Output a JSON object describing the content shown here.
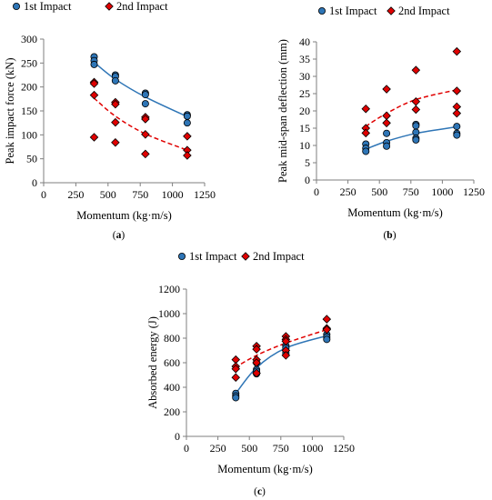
{
  "colors": {
    "series1": "#2E75B6",
    "series2": "#E00000",
    "marker_edge": "#000000",
    "axis": "#7f7f7f"
  },
  "chart_data": [
    {
      "panel_label": "a",
      "type": "scatter",
      "xlabel": "Momentum (kg·m/s)",
      "ylabel": "Peak impact force (kN)",
      "xlim": [
        0,
        1250
      ],
      "ylim": [
        0,
        300
      ],
      "x_ticks": [
        0,
        250,
        500,
        750,
        1000,
        1250
      ],
      "y_ticks": [
        0,
        50,
        100,
        150,
        200,
        250,
        300
      ],
      "legend_position": "top",
      "series": [
        {
          "name": "1st Impact",
          "marker": "circle",
          "points": [
            [
              392,
              263
            ],
            [
              392,
              255
            ],
            [
              392,
              247
            ],
            [
              557,
              225
            ],
            [
              557,
              222
            ],
            [
              557,
              213
            ],
            [
              790,
              187
            ],
            [
              790,
              184
            ],
            [
              790,
              165
            ],
            [
              1115,
              142
            ],
            [
              1115,
              139
            ],
            [
              1115,
              125
            ]
          ],
          "trend": {
            "style": "solid",
            "points": [
              [
                390,
                252
              ],
              [
                557,
                216
              ],
              [
                790,
                179
              ],
              [
                1115,
                138
              ]
            ]
          }
        },
        {
          "name": "2nd Impact",
          "marker": "diamond",
          "points": [
            [
              392,
              210
            ],
            [
              392,
              207
            ],
            [
              392,
              183
            ],
            [
              392,
              95
            ],
            [
              557,
              168
            ],
            [
              557,
              164
            ],
            [
              557,
              126
            ],
            [
              557,
              84
            ],
            [
              790,
              137
            ],
            [
              790,
              133
            ],
            [
              790,
              101
            ],
            [
              790,
              60
            ],
            [
              1115,
              97
            ],
            [
              1115,
              68
            ],
            [
              1115,
              57
            ]
          ],
          "trend": {
            "style": "dashed",
            "points": [
              [
                390,
                177
              ],
              [
                557,
                139
              ],
              [
                790,
                102
              ],
              [
                1115,
                68
              ]
            ]
          }
        }
      ]
    },
    {
      "panel_label": "b",
      "type": "scatter",
      "xlabel": "Momentum (kg·m/s)",
      "ylabel": "Peak mid-span deflection (mm)",
      "xlim": [
        0,
        1250
      ],
      "ylim": [
        0,
        40
      ],
      "x_ticks": [
        0,
        250,
        500,
        750,
        1000,
        1250
      ],
      "y_ticks": [
        0,
        5,
        10,
        15,
        20,
        25,
        30,
        35,
        40
      ],
      "legend_position": "top",
      "series": [
        {
          "name": "1st Impact",
          "marker": "circle",
          "points": [
            [
              392,
              10.4
            ],
            [
              392,
              9.2
            ],
            [
              392,
              8.3
            ],
            [
              557,
              13.5
            ],
            [
              557,
              10.8
            ],
            [
              557,
              9.8
            ],
            [
              790,
              16.1
            ],
            [
              790,
              15.7
            ],
            [
              790,
              13.8
            ],
            [
              790,
              12.1
            ],
            [
              790,
              11.6
            ],
            [
              1115,
              15.5
            ],
            [
              1115,
              13.5
            ],
            [
              1115,
              13.0
            ]
          ],
          "trend": {
            "style": "solid",
            "points": [
              [
                390,
                8.9
              ],
              [
                557,
                11.2
              ],
              [
                790,
                13.5
              ],
              [
                1115,
                15.4
              ]
            ]
          }
        },
        {
          "name": "2nd Impact",
          "marker": "diamond",
          "points": [
            [
              392,
              20.6
            ],
            [
              392,
              15.0
            ],
            [
              392,
              13.6
            ],
            [
              557,
              26.3
            ],
            [
              557,
              18.6
            ],
            [
              557,
              16.5
            ],
            [
              790,
              31.8
            ],
            [
              790,
              22.7
            ],
            [
              790,
              20.4
            ],
            [
              1115,
              37.2
            ],
            [
              1115,
              25.8
            ],
            [
              1115,
              21.2
            ],
            [
              1115,
              19.3
            ]
          ],
          "trend": {
            "style": "dashed",
            "points": [
              [
                390,
                15.5
              ],
              [
                557,
                19.3
              ],
              [
                790,
                23.3
              ],
              [
                1115,
                26.1
              ]
            ]
          }
        }
      ]
    },
    {
      "panel_label": "c",
      "type": "scatter",
      "xlabel": "Momentum (kg·m/s)",
      "ylabel": "Absorbed energy (J)",
      "xlim": [
        0,
        1250
      ],
      "ylim": [
        0,
        1200
      ],
      "x_ticks": [
        0,
        250,
        500,
        750,
        1000,
        1250
      ],
      "y_ticks": [
        0,
        200,
        400,
        600,
        800,
        1000,
        1200
      ],
      "legend_position": "top",
      "series": [
        {
          "name": "1st Impact",
          "marker": "circle",
          "points": [
            [
              392,
              350
            ],
            [
              392,
              330
            ],
            [
              392,
              315
            ],
            [
              557,
              600
            ],
            [
              557,
              545
            ],
            [
              557,
              530
            ],
            [
              557,
              510
            ],
            [
              790,
              740
            ],
            [
              790,
              720
            ],
            [
              790,
              680
            ],
            [
              1115,
              830
            ],
            [
              1115,
              810
            ],
            [
              1115,
              790
            ]
          ],
          "trend": {
            "style": "solid",
            "points": [
              [
                385,
                340
              ],
              [
                557,
                560
              ],
              [
                790,
                720
              ],
              [
                1115,
                820
              ]
            ]
          }
        },
        {
          "name": "2nd Impact",
          "marker": "diamond",
          "points": [
            [
              392,
              625
            ],
            [
              392,
              570
            ],
            [
              392,
              550
            ],
            [
              392,
              480
            ],
            [
              557,
              735
            ],
            [
              557,
              710
            ],
            [
              557,
              625
            ],
            [
              557,
              600
            ],
            [
              557,
              515
            ],
            [
              790,
              815
            ],
            [
              790,
              790
            ],
            [
              790,
              775
            ],
            [
              790,
              700
            ],
            [
              790,
              660
            ],
            [
              1115,
              955
            ],
            [
              1115,
              880
            ],
            [
              1115,
              870
            ]
          ],
          "trend": {
            "style": "dashed",
            "points": [
              [
                385,
                560
              ],
              [
                557,
                660
              ],
              [
                790,
                760
              ],
              [
                1115,
                870
              ]
            ]
          }
        }
      ]
    }
  ]
}
